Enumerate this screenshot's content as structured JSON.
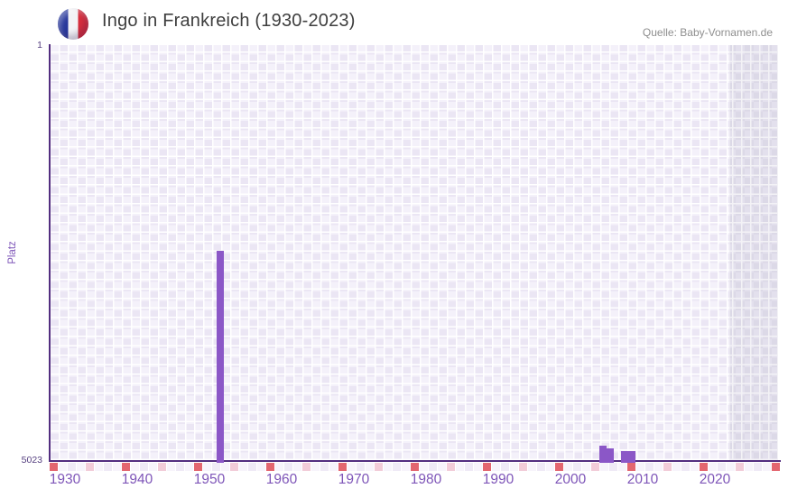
{
  "header": {
    "title": "Ingo in Frankreich (1930-2023)",
    "source": "Quelle: Baby-Vornamen.de",
    "flag_icon": "france-flag-icon"
  },
  "chart_data": {
    "type": "bar",
    "title": "Ingo in Frankreich (1930-2023)",
    "xlabel": "",
    "ylabel": "Platz",
    "y_axis": {
      "top_label": "1",
      "bottom_label": "5023",
      "min": 1,
      "max": 5023,
      "inverted": true
    },
    "x_axis": {
      "range_hint": [
        1928,
        2029
      ],
      "ticks": [
        1930,
        1940,
        1950,
        1960,
        1970,
        1980,
        1990,
        2000,
        2010,
        2020
      ]
    },
    "points": [
      {
        "year": 1951,
        "rank": 2490
      },
      {
        "year": 2004,
        "rank": 4853
      },
      {
        "year": 2005,
        "rank": 4886
      },
      {
        "year": 2007,
        "rank": 4912
      },
      {
        "year": 2008,
        "rank": 4917
      }
    ],
    "highlight_band": {
      "start_year": 2022
    },
    "grid": "checkered",
    "legend": "none",
    "colors": {
      "bar": "#8b57c7",
      "axis_line": "#532e80",
      "axis_label": "#7e55b8",
      "tick_label": "#564080",
      "title": "#3e3e3e",
      "source": "#8e8e8e",
      "cell_dark": "#ebe6f4",
      "cell_light": "#f4f1fa",
      "band_dark": "#dcd9e7",
      "band_light": "#e3e0ed",
      "strip_red": "#e3666f",
      "strip_pink": "#f2ccd8",
      "strip_pale_a": "#f7f4fb",
      "strip_pale_b": "#efeaf6",
      "flag_blue": "#28389b",
      "flag_red": "#d92f3d"
    }
  }
}
